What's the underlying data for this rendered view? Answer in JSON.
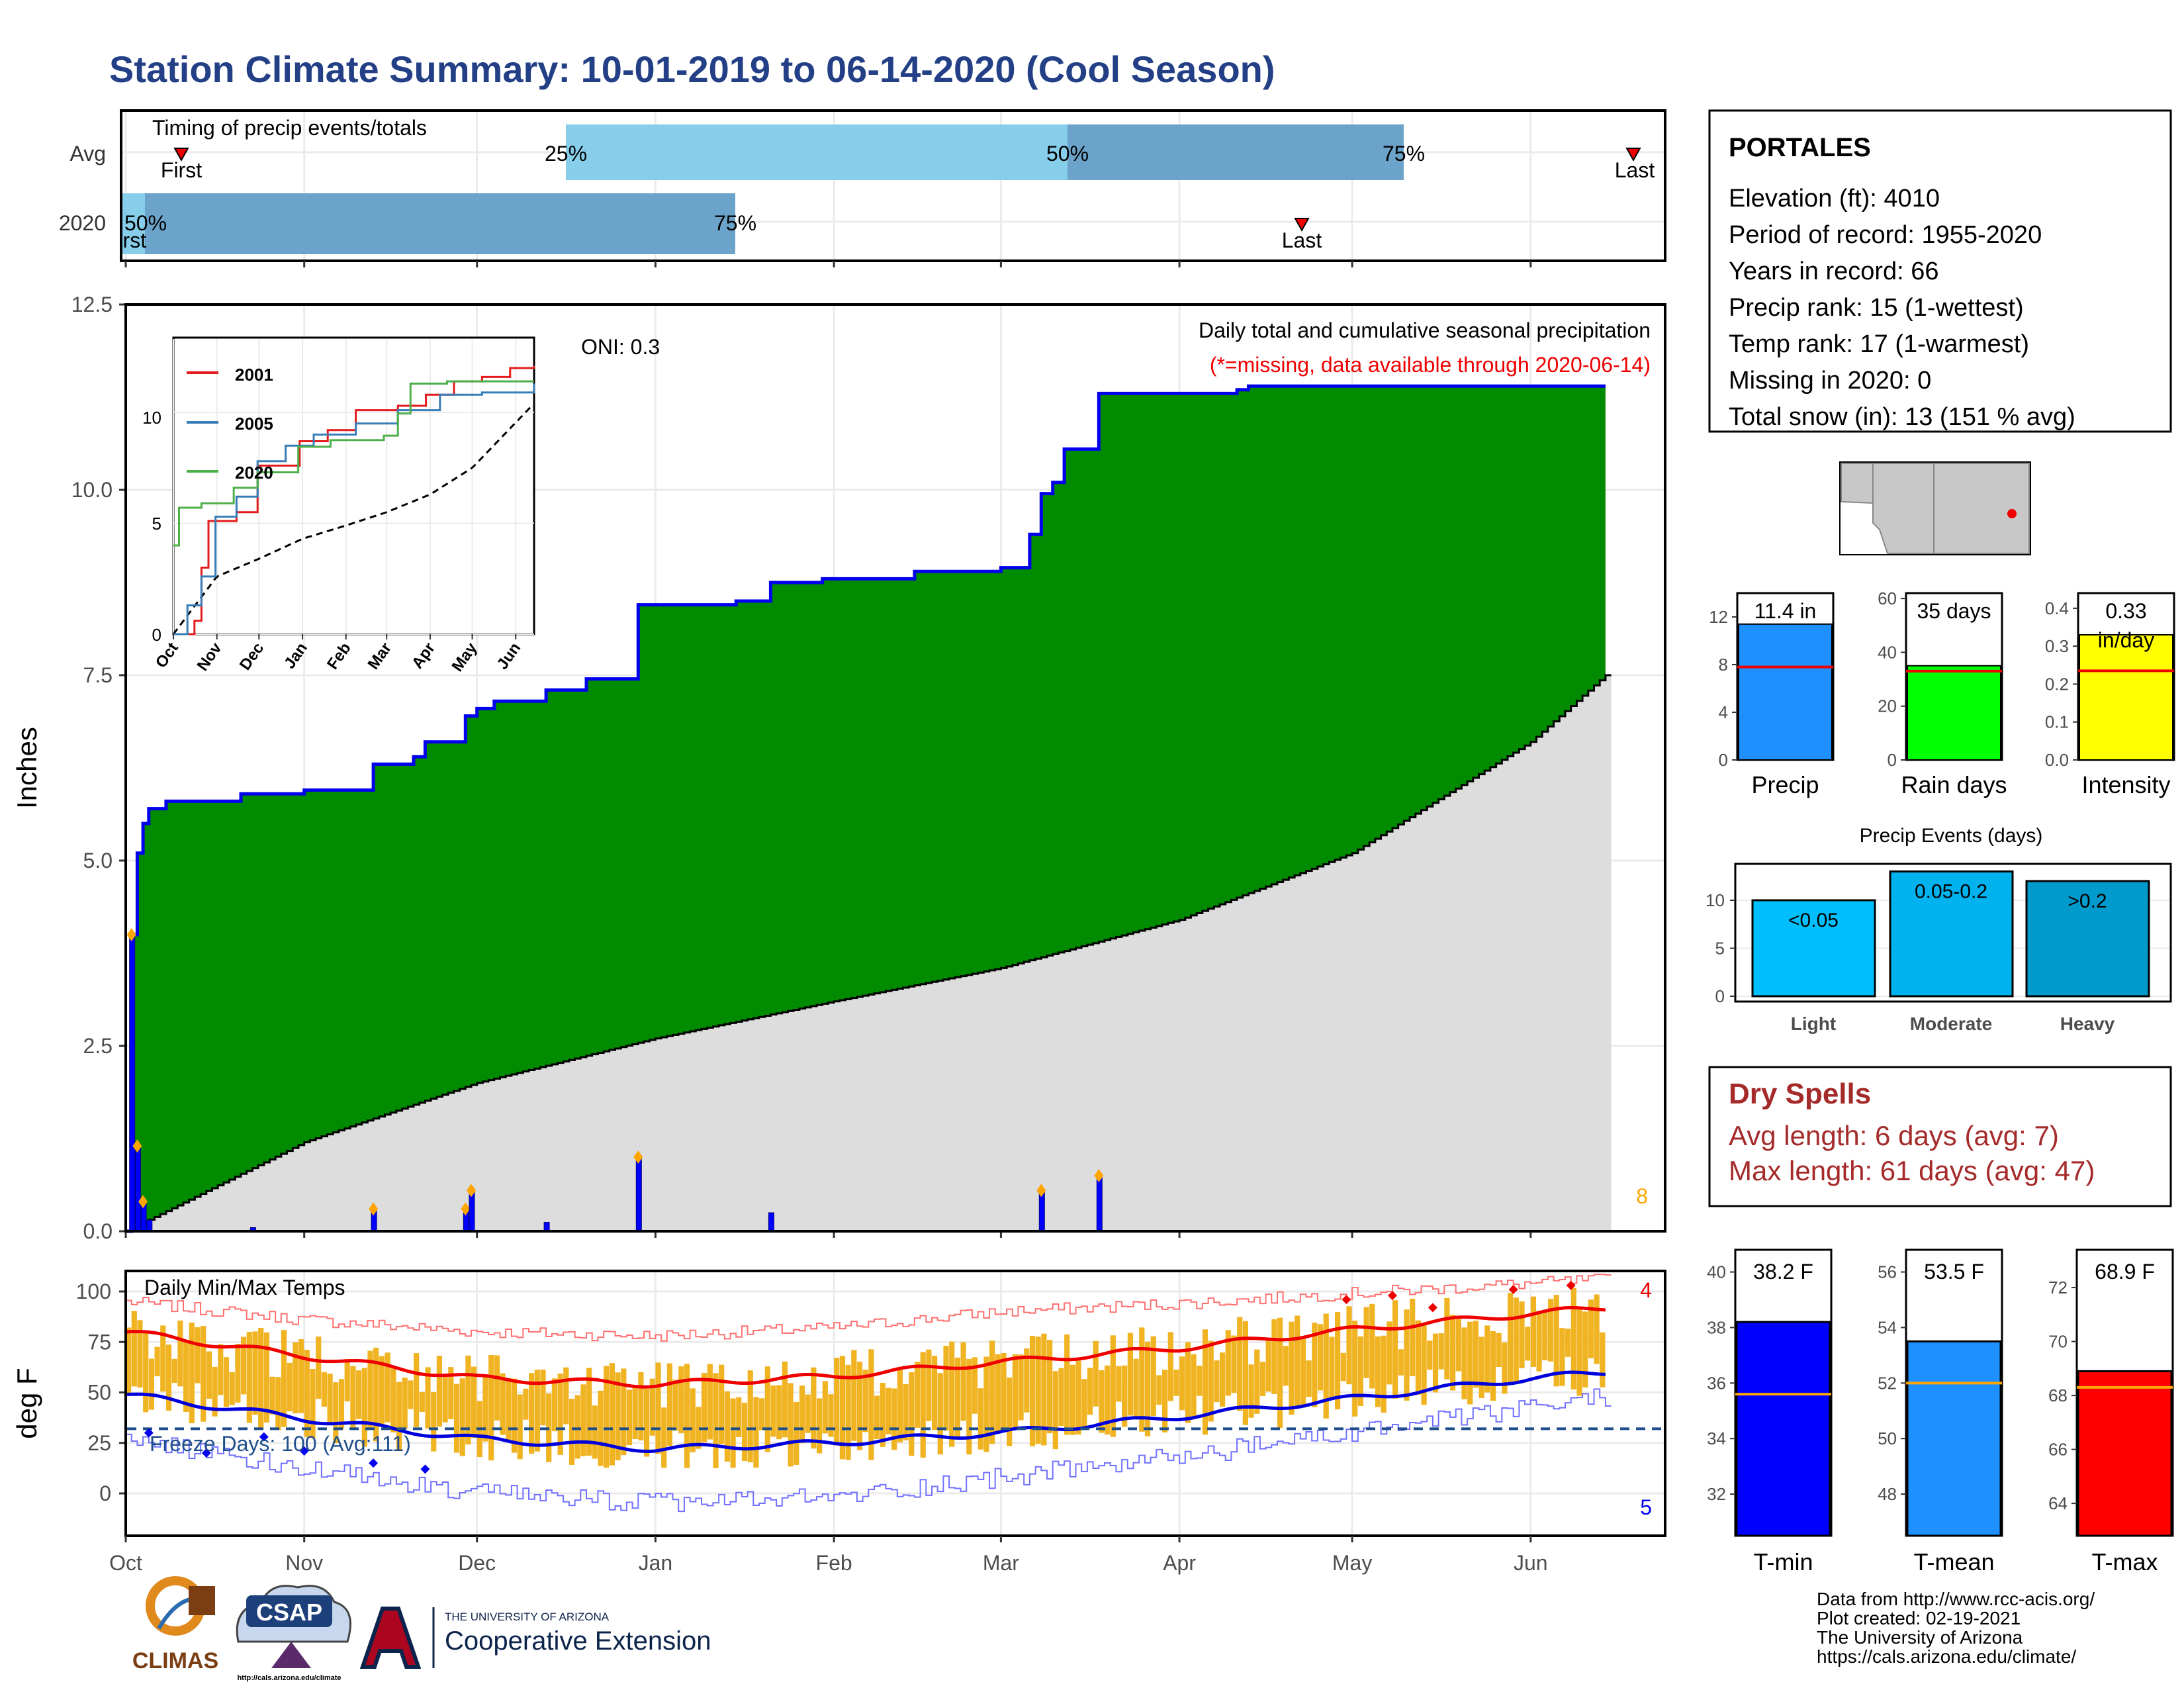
{
  "title": "Station Climate Summary: 10-01-2019 to 06-14-2020 (Cool Season)",
  "colors": {
    "title": "#233f86",
    "cumulative_fill": "#008b00",
    "cumulative_line": "#0000ee",
    "avg_fill": "#dddddd",
    "timing_light": "#87ceeb",
    "timing_dark": "#6ba3cb",
    "tmax_fill": "#f0b322",
    "dry_spells": "#a52a2a",
    "missing_note": "#ee0000"
  },
  "timing": {
    "label": "Timing of precip events/totals",
    "rows": [
      "Avg",
      "2020"
    ],
    "avg": {
      "first": "First",
      "last": "Last",
      "p25": "25%",
      "p50": "50%",
      "p75": "75%"
    },
    "y2020": {
      "first": "First",
      "last": "Last",
      "p50": "50%",
      "p75": "75%"
    }
  },
  "precip": {
    "ylabel": "Inches",
    "oni": "ONI: 0.3",
    "header": "Daily total and cumulative seasonal precipitation",
    "missing_note": "(*=missing, data available through 2020-06-14)",
    "extreme_count": "8"
  },
  "inset": {
    "legend": [
      "2001",
      "2005",
      "2020"
    ],
    "legend_colors": [
      "#e41a1c",
      "#377eb8",
      "#4daf4a"
    ],
    "months": [
      "Oct",
      "Nov",
      "Dec",
      "Jan",
      "Feb",
      "Mar",
      "Apr",
      "May",
      "Jun"
    ],
    "yticks": [
      "0",
      "5",
      "10"
    ]
  },
  "temps": {
    "ylabel": "deg F",
    "label": "Daily Min/Max Temps",
    "freeze": "Freeze Days: 100 (Avg:111)",
    "max_records": "4",
    "min_records": "5"
  },
  "months": [
    "Oct",
    "Nov",
    "Dec",
    "Jan",
    "Feb",
    "Mar",
    "Apr",
    "May",
    "Jun"
  ],
  "station": {
    "name": "PORTALES",
    "lines": [
      "Elevation (ft): 4010",
      "Period of record: 1955-2020",
      "Years in record: 66",
      "Precip rank: 15 (1-wettest)",
      "Temp rank: 17 (1-warmest)",
      "Missing in 2020: 0",
      "Total snow (in): 13 (151 % avg)"
    ]
  },
  "minibars": [
    {
      "label": "Precip",
      "value_text": "11.4 in",
      "value": 11.4,
      "avg": 7.8,
      "ymax": 14,
      "ticks": [
        "0",
        "4",
        "8",
        "12"
      ],
      "tickvals": [
        0,
        4,
        8,
        12
      ],
      "color": "#1e90ff"
    },
    {
      "label": "Rain days",
      "value_text": "35 days",
      "value": 35,
      "avg": 33,
      "ymax": 62,
      "ticks": [
        "0",
        "20",
        "40",
        "60"
      ],
      "tickvals": [
        0,
        20,
        40,
        60
      ],
      "color": "#00ff00"
    },
    {
      "label": "Intensity",
      "value_text": "0.33",
      "value_sub": "in/day",
      "value": 0.33,
      "avg": 0.235,
      "ymax": 0.44,
      "ticks": [
        "0.0",
        "0.1",
        "0.2",
        "0.3",
        "0.4"
      ],
      "tickvals": [
        0,
        0.1,
        0.2,
        0.3,
        0.4
      ],
      "color": "#ffff00"
    }
  ],
  "events": {
    "title": "Precip Events (days)",
    "categories": [
      "Light",
      "Moderate",
      "Heavy"
    ],
    "ranges": [
      "<0.05",
      "0.05-0.2",
      ">0.2"
    ],
    "values": [
      10,
      13,
      12
    ],
    "colors": [
      "#00bfff",
      "#00b2ee",
      "#009acd"
    ],
    "ticks": [
      "0",
      "5",
      "10"
    ]
  },
  "dry_spells": {
    "title": "Dry Spells",
    "avg": "Avg length: 6 days (avg: 7)",
    "max": "Max length: 61 days (avg: 47)"
  },
  "tempbars": [
    {
      "label": "T-min",
      "value_text": "38.2 F",
      "value": 38.2,
      "avg": 35.6,
      "ymin": 30.5,
      "ymax": 40.8,
      "ticks": [
        "32",
        "34",
        "36",
        "38",
        "40"
      ],
      "tickvals": [
        32,
        34,
        36,
        38,
        40
      ],
      "color": "#0000ff"
    },
    {
      "label": "T-mean",
      "value_text": "53.5 F",
      "value": 53.5,
      "avg": 52.0,
      "ymin": 46.5,
      "ymax": 56.8,
      "ticks": [
        "48",
        "50",
        "52",
        "54",
        "56"
      ],
      "tickvals": [
        48,
        50,
        52,
        54,
        56
      ],
      "color": "#1e90ff"
    },
    {
      "label": "T-max",
      "value_text": "68.9 F",
      "value": 68.9,
      "avg": 68.3,
      "ymin": 62.8,
      "ymax": 73.4,
      "ticks": [
        "64",
        "66",
        "68",
        "70",
        "72"
      ],
      "tickvals": [
        64,
        66,
        68,
        70,
        72
      ],
      "color": "#ff0000"
    }
  ],
  "footer": {
    "lines": [
      "Data from http://www.rcc-acis.org/",
      "Plot created: 02-19-2021",
      "The University of Arizona",
      "https://cals.arizona.edu/climate/"
    ],
    "logo_climas": "CLIMAS",
    "logo_csap": "CSAP",
    "logo_csap_url": "http://cals.arizona.edu/climate",
    "ua_top": "THE UNIVERSITY OF ARIZONA",
    "ua_bottom": "Cooperative Extension"
  },
  "chart_data": [
    {
      "type": "area",
      "title": "Daily total and cumulative seasonal precipitation",
      "ylabel": "Inches",
      "ylim": [
        0,
        12.5
      ],
      "yticks": [
        0,
        2.5,
        5.0,
        7.5,
        10.0,
        12.5
      ],
      "x_months": [
        "Oct",
        "Nov",
        "Dec",
        "Jan",
        "Feb",
        "Mar",
        "Apr",
        "May",
        "Jun"
      ],
      "series": [
        {
          "name": "cumulative 2020",
          "points": [
            [
              "2019-10-01",
              0
            ],
            [
              "2019-10-02",
              4.0
            ],
            [
              "2019-10-03",
              5.1
            ],
            [
              "2019-10-04",
              5.5
            ],
            [
              "2019-10-05",
              5.7
            ],
            [
              "2019-10-08",
              5.8
            ],
            [
              "2019-10-20",
              5.8
            ],
            [
              "2019-10-21",
              5.9
            ],
            [
              "2019-11-01",
              5.95
            ],
            [
              "2019-11-12",
              5.95
            ],
            [
              "2019-11-13",
              6.3
            ],
            [
              "2019-11-20",
              6.4
            ],
            [
              "2019-11-22",
              6.6
            ],
            [
              "2019-11-29",
              6.95
            ],
            [
              "2019-12-01",
              7.05
            ],
            [
              "2019-12-04",
              7.15
            ],
            [
              "2019-12-13",
              7.3
            ],
            [
              "2019-12-20",
              7.45
            ],
            [
              "2019-12-28",
              7.45
            ],
            [
              "2019-12-29",
              8.45
            ],
            [
              "2020-01-15",
              8.5
            ],
            [
              "2020-01-21",
              8.75
            ],
            [
              "2020-01-30",
              8.8
            ],
            [
              "2020-02-10",
              8.8
            ],
            [
              "2020-02-15",
              8.9
            ],
            [
              "2020-03-01",
              8.95
            ],
            [
              "2020-03-06",
              9.4
            ],
            [
              "2020-03-08",
              9.95
            ],
            [
              "2020-03-10",
              10.1
            ],
            [
              "2020-03-12",
              10.55
            ],
            [
              "2020-03-18",
              11.3
            ],
            [
              "2020-04-11",
              11.35
            ],
            [
              "2020-04-13",
              11.4
            ],
            [
              "2020-06-14",
              11.4
            ]
          ]
        },
        {
          "name": "seasonal average",
          "points": [
            [
              "2019-10-01",
              0
            ],
            [
              "2019-11-01",
              1.2
            ],
            [
              "2019-12-01",
              2.0
            ],
            [
              "2020-01-01",
              2.6
            ],
            [
              "2020-02-01",
              3.1
            ],
            [
              "2020-03-01",
              3.55
            ],
            [
              "2020-04-01",
              4.2
            ],
            [
              "2020-05-01",
              5.1
            ],
            [
              "2020-06-01",
              6.6
            ],
            [
              "2020-06-14",
              7.5
            ]
          ]
        }
      ],
      "daily_totals": [
        [
          "2019-10-02",
          4.0
        ],
        [
          "2019-10-03",
          1.15
        ],
        [
          "2019-10-04",
          0.4
        ],
        [
          "2019-10-05",
          0.15
        ],
        [
          "2019-10-23",
          0.05
        ],
        [
          "2019-11-13",
          0.3
        ],
        [
          "2019-11-29",
          0.3
        ],
        [
          "2019-11-30",
          0.55
        ],
        [
          "2019-12-13",
          0.12
        ],
        [
          "2019-12-29",
          1.0
        ],
        [
          "2020-01-21",
          0.25
        ],
        [
          "2020-03-08",
          0.55
        ],
        [
          "2020-03-18",
          0.75
        ]
      ]
    },
    {
      "type": "line",
      "title": "Daily Min/Max Temps",
      "ylabel": "deg F",
      "ylim": [
        -20,
        110
      ],
      "yticks": [
        0,
        25,
        50,
        75,
        100
      ],
      "freeze_threshold": 32,
      "series": [
        {
          "name": "avg max",
          "points": [
            [
              "2019-10-01",
              80
            ],
            [
              "2019-11-01",
              68
            ],
            [
              "2019-12-01",
              57
            ],
            [
              "2020-01-01",
              54
            ],
            [
              "2020-02-01",
              58
            ],
            [
              "2020-03-01",
              65
            ],
            [
              "2020-04-01",
              72
            ],
            [
              "2020-05-01",
              81
            ],
            [
              "2020-06-01",
              89
            ],
            [
              "2020-06-14",
              92
            ]
          ]
        },
        {
          "name": "avg min",
          "points": [
            [
              "2019-10-01",
              49
            ],
            [
              "2019-11-01",
              37
            ],
            [
              "2019-12-01",
              27
            ],
            [
              "2020-01-01",
              22
            ],
            [
              "2020-02-01",
              25
            ],
            [
              "2020-03-01",
              30
            ],
            [
              "2020-04-01",
              38
            ],
            [
              "2020-05-01",
              47
            ],
            [
              "2020-06-01",
              57
            ],
            [
              "2020-06-14",
              60
            ]
          ]
        },
        {
          "name": "record high",
          "points": [
            [
              "2019-10-01",
              95
            ],
            [
              "2019-11-01",
              86
            ],
            [
              "2019-12-01",
              80
            ],
            [
              "2020-01-01",
              78
            ],
            [
              "2020-02-01",
              82
            ],
            [
              "2020-03-01",
              90
            ],
            [
              "2020-04-01",
              94
            ],
            [
              "2020-05-01",
              99
            ],
            [
              "2020-06-01",
              104
            ],
            [
              "2020-06-14",
              106
            ]
          ]
        },
        {
          "name": "record low",
          "points": [
            [
              "2019-10-01",
              28
            ],
            [
              "2019-11-01",
              12
            ],
            [
              "2019-12-01",
              0
            ],
            [
              "2020-01-01",
              -5
            ],
            [
              "2020-02-01",
              -2
            ],
            [
              "2020-03-01",
              8
            ],
            [
              "2020-04-01",
              18
            ],
            [
              "2020-05-01",
              30
            ],
            [
              "2020-06-01",
              42
            ],
            [
              "2020-06-14",
              48
            ]
          ]
        }
      ]
    }
  ]
}
